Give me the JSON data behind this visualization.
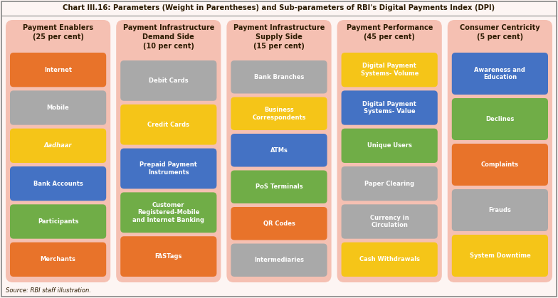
{
  "title": "Chart III.16: Parameters (Weight in Parentheses) and Sub-parameters of RBI's Digital Payments Index (DPI)",
  "source": "Source: RBI staff illustration.",
  "bg_outer": "#fdf5f3",
  "border_color": "#888888",
  "title_color": "#2b1a00",
  "columns": [
    {
      "header": "Payment Enablers\n(25 per cent)",
      "items": [
        {
          "label": "Internet",
          "color": "#e8732a",
          "italic": false
        },
        {
          "label": "Mobile",
          "color": "#a9a9a9",
          "italic": false
        },
        {
          "label": "Aadhaar",
          "color": "#f5c518",
          "italic": true
        },
        {
          "label": "Bank Accounts",
          "color": "#4472c4",
          "italic": false
        },
        {
          "label": "Participants",
          "color": "#70ad47",
          "italic": false
        },
        {
          "label": "Merchants",
          "color": "#e8732a",
          "italic": false
        }
      ]
    },
    {
      "header": "Payment Infrastructure\nDemand Side\n(10 per cent)",
      "items": [
        {
          "label": "Debit Cards",
          "color": "#a9a9a9",
          "italic": false
        },
        {
          "label": "Credit Cards",
          "color": "#f5c518",
          "italic": false
        },
        {
          "label": "Prepaid Payment\nInstruments",
          "color": "#4472c4",
          "italic": false
        },
        {
          "label": "Customer\nRegistered-Mobile\nand Internet Banking",
          "color": "#70ad47",
          "italic": false
        },
        {
          "label": "FASTags",
          "color": "#e8732a",
          "italic": false
        }
      ]
    },
    {
      "header": "Payment Infrastructure\nSupply Side\n(15 per cent)",
      "items": [
        {
          "label": "Bank Branches",
          "color": "#a9a9a9",
          "italic": false
        },
        {
          "label": "Business\nCorrespondents",
          "color": "#f5c518",
          "italic": false
        },
        {
          "label": "ATMs",
          "color": "#4472c4",
          "italic": false
        },
        {
          "label": "PoS Terminals",
          "color": "#70ad47",
          "italic": false
        },
        {
          "label": "QR Codes",
          "color": "#e8732a",
          "italic": false
        },
        {
          "label": "Intermediaries",
          "color": "#a9a9a9",
          "italic": false
        }
      ]
    },
    {
      "header": "Payment Performance\n(45 per cent)",
      "items": [
        {
          "label": "Digital Payment\nSystems- Volume",
          "color": "#f5c518",
          "italic": false
        },
        {
          "label": "Digital Payment\nSystems- Value",
          "color": "#4472c4",
          "italic": false
        },
        {
          "label": "Unique Users",
          "color": "#70ad47",
          "italic": false
        },
        {
          "label": "Paper Clearing",
          "color": "#a9a9a9",
          "italic": false
        },
        {
          "label": "Currency in\nCirculation",
          "color": "#a9a9a9",
          "italic": false
        },
        {
          "label": "Cash Withdrawals",
          "color": "#f5c518",
          "italic": false
        }
      ]
    },
    {
      "header": "Consumer Centricity\n(5 per cent)",
      "items": [
        {
          "label": "Awareness and\nEducation",
          "color": "#4472c4",
          "italic": false
        },
        {
          "label": "Declines",
          "color": "#70ad47",
          "italic": false
        },
        {
          "label": "Complaints",
          "color": "#e8732a",
          "italic": false
        },
        {
          "label": "Frauds",
          "color": "#a9a9a9",
          "italic": false
        },
        {
          "label": "System Downtime",
          "color": "#f5c518",
          "italic": false
        }
      ]
    }
  ],
  "label_color": "#ffffff",
  "header_color": "#2b1a00",
  "col_bg": "#f5c0b2"
}
